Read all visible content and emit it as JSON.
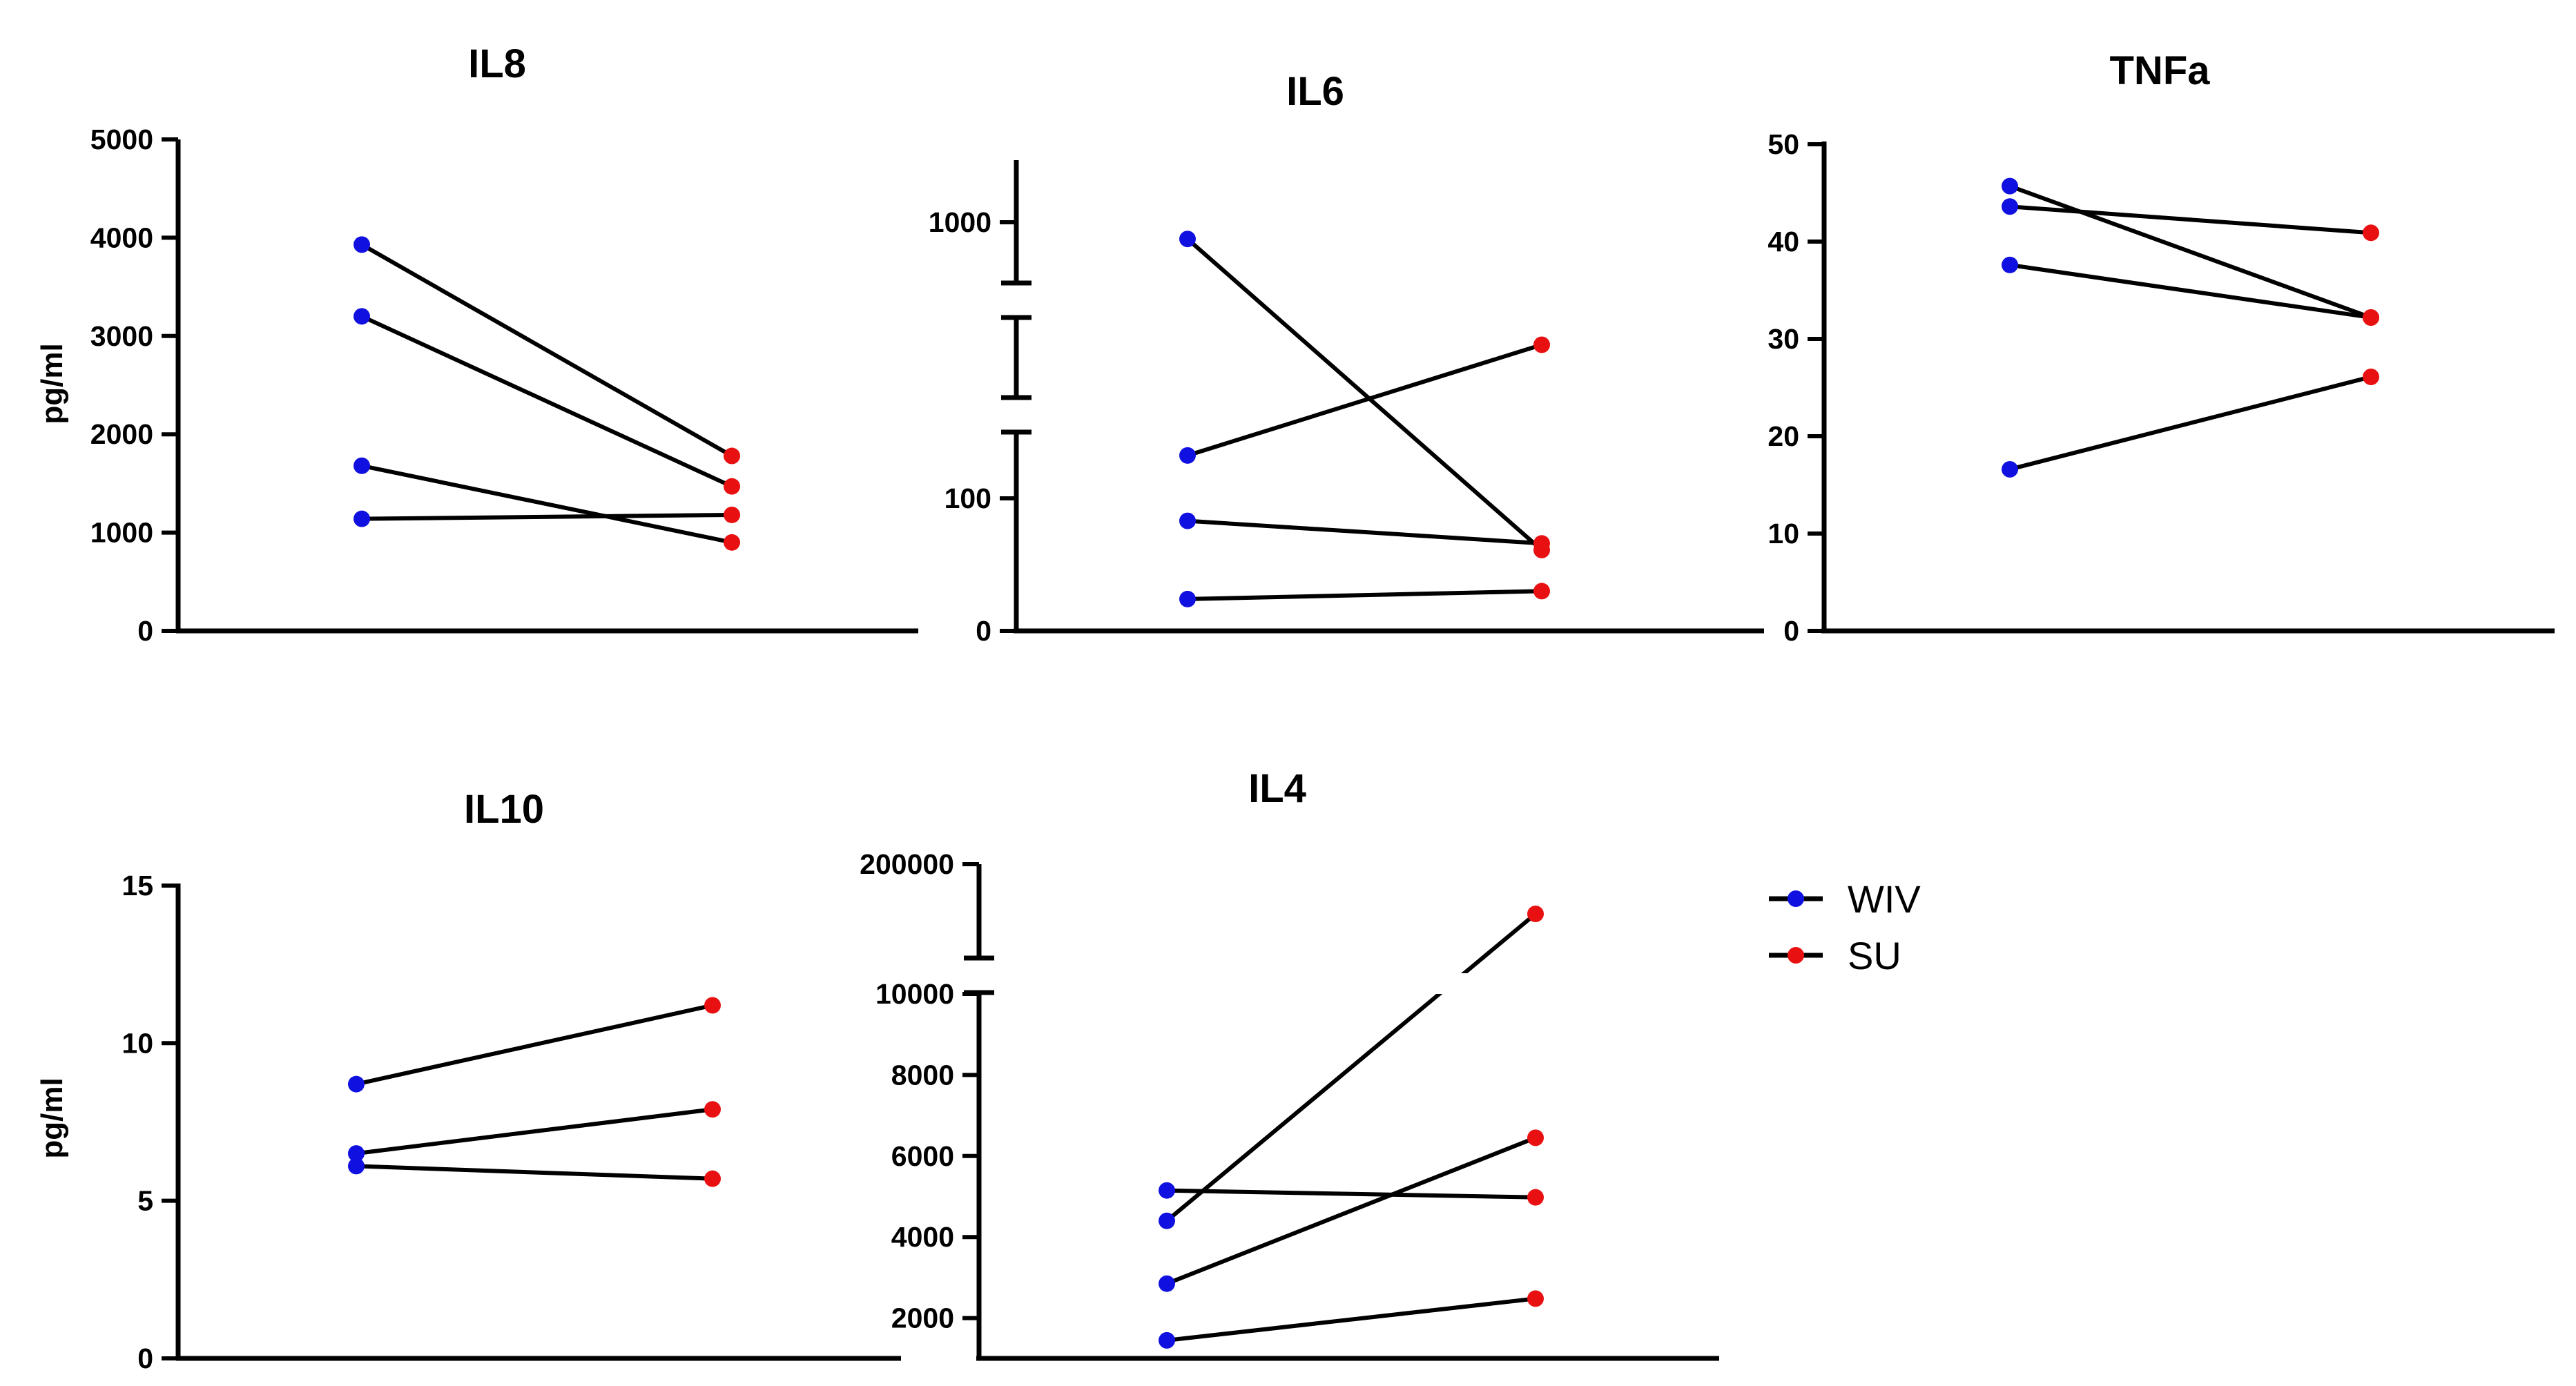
{
  "figure_label": "pg/ml",
  "colors": {
    "WIV": "#1010e0",
    "SU": "#e81010",
    "line": "#000000"
  },
  "legend": {
    "items": [
      {
        "key": "WIV",
        "label": "WIV"
      },
      {
        "key": "SU",
        "label": "SU"
      }
    ]
  },
  "chart_data": [
    {
      "id": "il8",
      "type": "line",
      "title": "IL8",
      "ylabel": "pg/ml",
      "ylim": [
        0,
        5000
      ],
      "yticks": [
        0,
        1000,
        2000,
        3000,
        4000,
        5000
      ],
      "x": [
        "WIV",
        "SU"
      ],
      "pairs": [
        [
          3930,
          1780
        ],
        [
          3200,
          1470
        ],
        [
          1680,
          900
        ],
        [
          1140,
          1180
        ]
      ]
    },
    {
      "id": "il6",
      "type": "line",
      "title": "IL6",
      "ylabel": "",
      "y_scale": "broken",
      "yticks": [
        0,
        100,
        1000
      ],
      "x": [
        "WIV",
        "SU"
      ],
      "pairs": [
        [
          870,
          61
        ],
        [
          143,
          360
        ],
        [
          83,
          66
        ],
        [
          24,
          30
        ]
      ]
    },
    {
      "id": "tnfa",
      "type": "line",
      "title": "TNFa",
      "ylabel": "",
      "ylim": [
        0,
        50
      ],
      "yticks": [
        0,
        10,
        20,
        30,
        40,
        50
      ],
      "x": [
        "WIV",
        "SU"
      ],
      "pairs": [
        [
          45.7,
          32.2
        ],
        [
          43.6,
          40.9
        ],
        [
          37.6,
          32.2
        ],
        [
          16.6,
          26.1
        ]
      ]
    },
    {
      "id": "il10",
      "type": "line",
      "title": "IL10",
      "ylabel": "pg/ml",
      "ylim": [
        0,
        15
      ],
      "yticks": [
        0,
        5,
        10,
        15
      ],
      "x": [
        "WIV",
        "SU"
      ],
      "pairs": [
        [
          8.7,
          11.2
        ],
        [
          6.5,
          7.9
        ],
        [
          6.1,
          5.7
        ]
      ]
    },
    {
      "id": "il4",
      "type": "line",
      "title": "IL4",
      "ylabel": "",
      "y_scale": "broken",
      "yticks": [
        2000,
        4000,
        6000,
        8000,
        10000,
        200000
      ],
      "x": [
        "WIV",
        "SU"
      ],
      "pairs": [
        [
          4400,
          150000
        ],
        [
          2850,
          6450
        ],
        [
          5150,
          4980
        ],
        [
          1450,
          2480
        ]
      ]
    }
  ]
}
